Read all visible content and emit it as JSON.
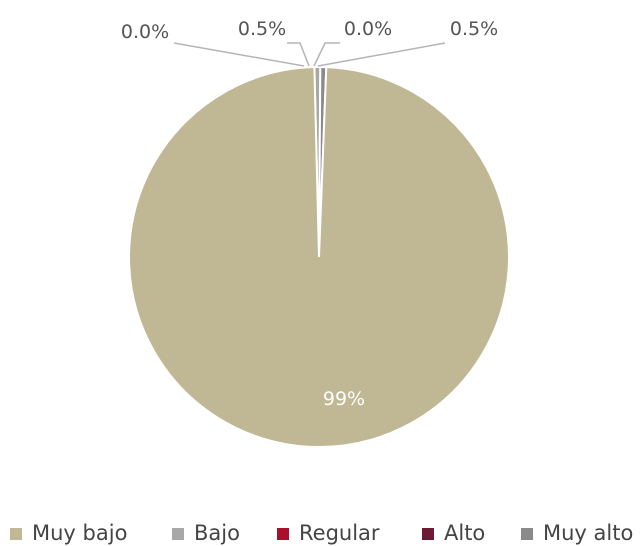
{
  "chart_data": {
    "type": "pie",
    "categories": [
      "Muy bajo",
      "Bajo",
      "Regular",
      "Alto",
      "Muy alto"
    ],
    "values": [
      99.0,
      0.5,
      0.0,
      0.0,
      0.5
    ],
    "labels": [
      "99%",
      "0.5%",
      "0.0%",
      "0.0%",
      "0.5%"
    ],
    "colors": [
      "#c0b794",
      "#a8a8a8",
      "#a8102e",
      "#6e1a34",
      "#8a8a8a"
    ],
    "legend_position": "bottom",
    "title": ""
  }
}
